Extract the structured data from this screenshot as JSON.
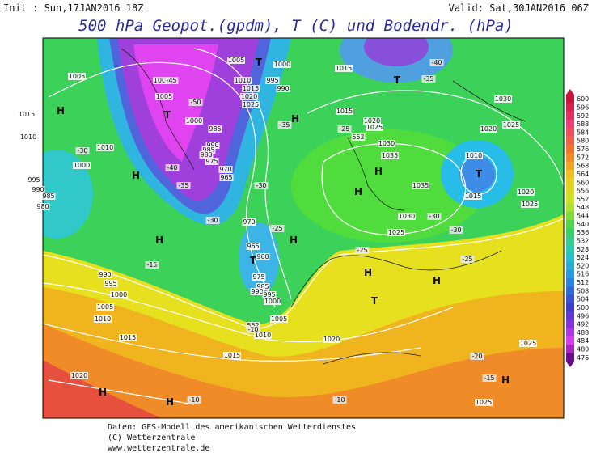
{
  "header": {
    "init": "Init : Sun,17JAN2016 18Z",
    "valid": "Valid: Sat,30JAN2016 06Z",
    "title": "500 hPa Geopot.(gpdm), T (C) und Bodendr. (hPa)"
  },
  "colorbar": {
    "ticks": [
      600,
      596,
      592,
      588,
      584,
      580,
      576,
      572,
      568,
      564,
      560,
      556,
      552,
      548,
      544,
      540,
      536,
      532,
      528,
      524,
      520,
      516,
      512,
      508,
      504,
      500,
      496,
      492,
      488,
      484,
      480,
      476
    ]
  },
  "map_labels": [
    "1005",
    "1005",
    "1005",
    "1005",
    "1000",
    "1010",
    "1015",
    "1020",
    "1025",
    "995",
    "990",
    "1000",
    "985",
    "990",
    "985",
    "980",
    "975",
    "970",
    "965",
    "970",
    "965",
    "960",
    "975",
    "985",
    "990",
    "995",
    "1000",
    "1005",
    "1010",
    "1010",
    "1015",
    "1015",
    "1020",
    "1025",
    "1030",
    "1035",
    "1035",
    "1030",
    "1025",
    "1030",
    "1025",
    "1020",
    "1010",
    "1015",
    "1020",
    "1025",
    "1020",
    "1015",
    "1020",
    "1010",
    "1015",
    "995",
    "990",
    "1000",
    "1005",
    "1000",
    "995",
    "990",
    "985",
    "980",
    "1010",
    "1015",
    "1025",
    "1025",
    "552",
    "552",
    "-45",
    "-50",
    "-40",
    "-35",
    "-35",
    "-30",
    "-30",
    "-25",
    "-25",
    "-25",
    "-30",
    "-30",
    "-35",
    "-40",
    "-25",
    "-30",
    "-15",
    "-10",
    "-20",
    "-15",
    "-10",
    "-10",
    "H",
    "H",
    "H",
    "H",
    "H",
    "H",
    "H",
    "H",
    "H",
    "H",
    "H",
    "H",
    "T",
    "T",
    "T",
    "T",
    "T",
    "T"
  ],
  "footer": [
    "Daten: GFS-Modell des amerikanischen Wetterdienstes",
    "(C) Wetterzentrale",
    "www.wetterzentrale.de"
  ]
}
